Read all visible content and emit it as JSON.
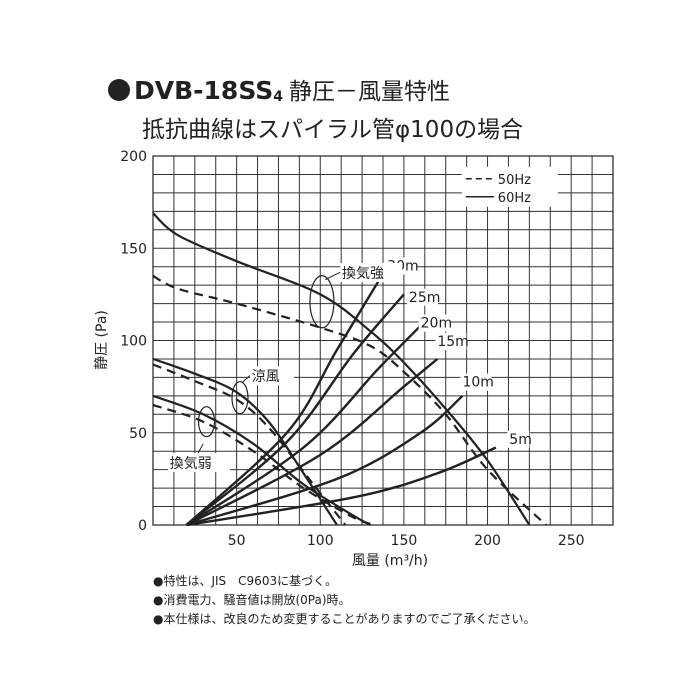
{
  "header": {
    "model": "DVB-18SS",
    "model_sub": "4",
    "subject": "静圧－風量特性",
    "subtitle": "抵抗曲線はスパイラル管φ100の場合"
  },
  "notes": [
    "●特性は、JIS　C9603に基づく。",
    "●消費電力、騒音値は開放(0Pa)時。",
    "●本仕様は、改良のため変更することがありますのでご了承ください。"
  ],
  "chart_data": {
    "type": "line",
    "xlabel": "風量 (m³/h)",
    "ylabel": "静圧 (Pa)",
    "xlim": [
      0,
      275
    ],
    "ylim": [
      0,
      200
    ],
    "x_ticks": [
      50,
      100,
      150,
      200,
      250
    ],
    "y_ticks": [
      0,
      50,
      100,
      150,
      200
    ],
    "grid": true,
    "legend_position": "top-right",
    "legend": [
      {
        "label": "50Hz",
        "style": "dashed"
      },
      {
        "label": "60Hz",
        "style": "solid"
      }
    ],
    "fan_curves": [
      {
        "name": "換気強",
        "freq": "60Hz",
        "style": "solid",
        "points": [
          [
            0,
            169
          ],
          [
            15,
            157
          ],
          [
            50,
            143
          ],
          [
            100,
            125
          ],
          [
            130,
            105
          ],
          [
            150,
            88
          ],
          [
            175,
            63
          ],
          [
            200,
            35
          ],
          [
            225,
            0
          ]
        ]
      },
      {
        "name": "換気強",
        "freq": "50Hz",
        "style": "dashed",
        "points": [
          [
            0,
            135
          ],
          [
            15,
            128
          ],
          [
            50,
            120
          ],
          [
            100,
            107
          ],
          [
            130,
            97
          ],
          [
            150,
            83
          ],
          [
            175,
            60
          ],
          [
            200,
            30
          ],
          [
            235,
            0
          ]
        ]
      },
      {
        "name": "涼風",
        "freq": "60Hz",
        "style": "solid",
        "points": [
          [
            0,
            90
          ],
          [
            25,
            82
          ],
          [
            50,
            72
          ],
          [
            70,
            55
          ],
          [
            90,
            28
          ],
          [
            110,
            0
          ]
        ]
      },
      {
        "name": "涼風",
        "freq": "50Hz",
        "style": "dashed",
        "points": [
          [
            0,
            87
          ],
          [
            25,
            78
          ],
          [
            50,
            68
          ],
          [
            70,
            52
          ],
          [
            95,
            23
          ],
          [
            115,
            0
          ]
        ]
      },
      {
        "name": "換気弱",
        "freq": "60Hz",
        "style": "solid",
        "points": [
          [
            0,
            70
          ],
          [
            30,
            60
          ],
          [
            60,
            44
          ],
          [
            90,
            22
          ],
          [
            120,
            5
          ],
          [
            130,
            0
          ]
        ]
      },
      {
        "name": "換気弱",
        "freq": "50Hz",
        "style": "dashed",
        "points": [
          [
            0,
            65
          ],
          [
            30,
            56
          ],
          [
            60,
            40
          ],
          [
            90,
            20
          ],
          [
            120,
            4
          ],
          [
            133,
            0
          ]
        ]
      }
    ],
    "resistance_curves": [
      {
        "label": "30m",
        "points": [
          [
            20,
            0
          ],
          [
            80,
            50
          ],
          [
            110,
            95
          ],
          [
            140,
            140
          ]
        ]
      },
      {
        "label": "25m",
        "points": [
          [
            20,
            0
          ],
          [
            80,
            45
          ],
          [
            120,
            93
          ],
          [
            150,
            125
          ]
        ]
      },
      {
        "label": "20m",
        "points": [
          [
            20,
            0
          ],
          [
            90,
            42
          ],
          [
            135,
            85
          ],
          [
            160,
            108
          ]
        ]
      },
      {
        "label": "15m",
        "points": [
          [
            20,
            0
          ],
          [
            100,
            38
          ],
          [
            150,
            75
          ],
          [
            170,
            90
          ]
        ]
      },
      {
        "label": "10m",
        "points": [
          [
            20,
            0
          ],
          [
            110,
            25
          ],
          [
            160,
            50
          ],
          [
            185,
            70
          ]
        ]
      },
      {
        "label": "5m",
        "points": [
          [
            20,
            0
          ],
          [
            120,
            15
          ],
          [
            170,
            28
          ],
          [
            205,
            42
          ]
        ]
      }
    ],
    "annotations": [
      "換気強",
      "涼風",
      "換気弱"
    ]
  }
}
